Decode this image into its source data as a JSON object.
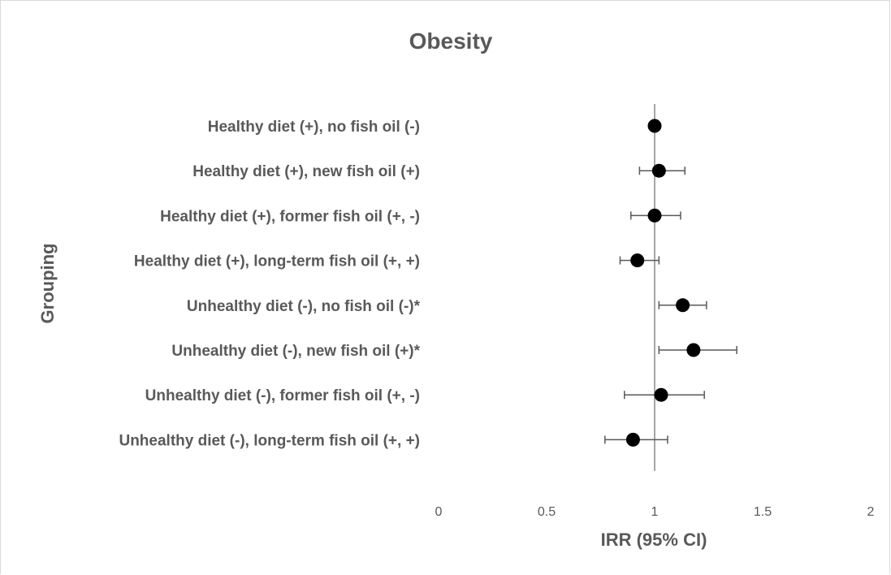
{
  "chart_data": {
    "type": "scatter",
    "title": "Obesity",
    "xlabel": "IRR (95% CI)",
    "ylabel": "Grouping",
    "xlim": [
      0,
      2
    ],
    "x_ticks": [
      "0",
      "0.5",
      "1",
      "1.5",
      "2"
    ],
    "reference_line": 1,
    "grid": false,
    "legend": "none",
    "marker_color": "#000000",
    "reference_line_color": "#a6a6a6",
    "text_color": "#595959",
    "categories": [
      "Healthy diet (+), no fish oil (-)",
      "Healthy diet (+), new fish oil (+)",
      "Healthy diet (+), former fish oil (+, -)",
      "Healthy diet (+), long-term fish oil (+, +)",
      "Unhealthy diet  (-), no fish oil (-)*",
      "Unhealthy diet  (-), new fish oil (+)*",
      "Unhealthy diet  (-), former fish oil (+, -)",
      "Unhealthy diet  (-), long-term fish oil (+, +)"
    ],
    "points": [
      {
        "irr": 1.0,
        "lower": null,
        "upper": null
      },
      {
        "irr": 1.02,
        "lower": 0.93,
        "upper": 1.14
      },
      {
        "irr": 1.0,
        "lower": 0.89,
        "upper": 1.12
      },
      {
        "irr": 0.92,
        "lower": 0.84,
        "upper": 1.02
      },
      {
        "irr": 1.13,
        "lower": 1.02,
        "upper": 1.24
      },
      {
        "irr": 1.18,
        "lower": 1.02,
        "upper": 1.38
      },
      {
        "irr": 1.03,
        "lower": 0.86,
        "upper": 1.23
      },
      {
        "irr": 0.9,
        "lower": 0.77,
        "upper": 1.06
      }
    ]
  }
}
